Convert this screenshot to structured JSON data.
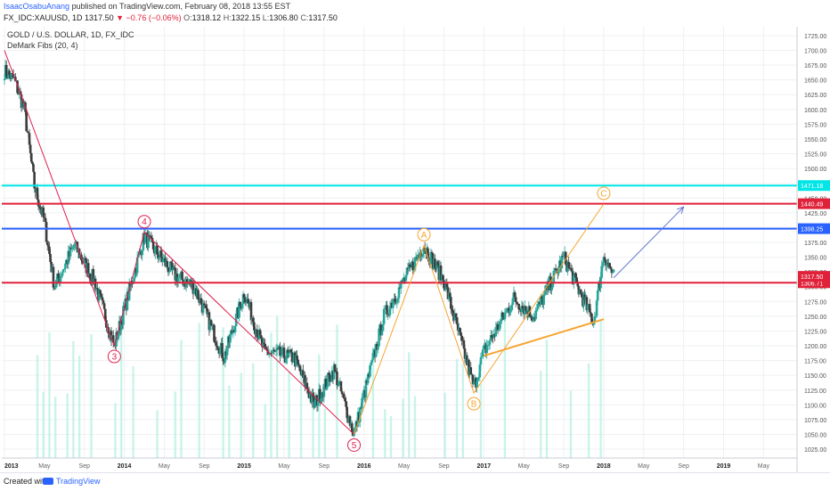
{
  "header": {
    "author": "IsaacOsabuAnang",
    "published_text": "published on TradingView.com, February 08, 2018 13:55 EST",
    "symbol": "FX_IDC:XAUUSD, 1D",
    "last": "1317.50",
    "change": "−0.76 (−0.06%)",
    "open_label": "O:",
    "open": "1318.12",
    "high_label": "H:",
    "high": "1322.15",
    "low_label": "L:",
    "low": "1306.80",
    "close_label": "C:",
    "close": "1317.50"
  },
  "legend": {
    "title": "GOLD / U.S. DOLLAR, 1D, FX_IDC",
    "indicator": "DeMark Fibs (20, 4)"
  },
  "footer": {
    "created_with": "Created with",
    "brand": "TradingView"
  },
  "colors": {
    "up": "#26a69a",
    "down": "#3d3d3d",
    "band": "#b2f0e0",
    "cyan": "#00e5e5",
    "red": "#e0213a",
    "blue": "#2962ff",
    "orange": "#f7a531",
    "wave_red": "#e0214f",
    "arrow": "#6675d3"
  },
  "chart_data": {
    "type": "candlestick",
    "x_ticks": [
      "2013",
      "May",
      "Sep",
      "2014",
      "May",
      "Sep",
      "2015",
      "May",
      "Sep",
      "2016",
      "May",
      "Sep",
      "2017",
      "May",
      "Sep",
      "2018",
      "May",
      "Sep",
      "2019",
      "May"
    ],
    "y_ticks": [
      1025,
      1050,
      1075,
      1100,
      1125,
      1150,
      1175,
      1200,
      1225,
      1250,
      1275,
      1300,
      1325,
      1350,
      1375,
      1400,
      1425,
      1450,
      1475,
      1500,
      1525,
      1550,
      1575,
      1600,
      1625,
      1650,
      1675,
      1700,
      1725
    ],
    "ylim": [
      1010,
      1740
    ],
    "grid": true,
    "price_path": [
      [
        "2013-01",
        1665
      ],
      [
        "2013-02",
        1650
      ],
      [
        "2013-03",
        1600
      ],
      [
        "2013-04",
        1470
      ],
      [
        "2013-05",
        1410
      ],
      [
        "2013-06",
        1300
      ],
      [
        "2013-08",
        1370
      ],
      [
        "2013-10",
        1310
      ],
      [
        "2013-12",
        1200
      ],
      [
        "2014-03",
        1385
      ],
      [
        "2014-06",
        1320
      ],
      [
        "2014-08",
        1300
      ],
      [
        "2014-11",
        1180
      ],
      [
        "2015-01",
        1290
      ],
      [
        "2015-03",
        1190
      ],
      [
        "2015-06",
        1180
      ],
      [
        "2015-08",
        1100
      ],
      [
        "2015-10",
        1160
      ],
      [
        "2015-12",
        1050
      ],
      [
        "2016-03",
        1250
      ],
      [
        "2016-07",
        1370
      ],
      [
        "2016-09",
        1310
      ],
      [
        "2016-12",
        1130
      ],
      [
        "2017-01",
        1190
      ],
      [
        "2017-04",
        1280
      ],
      [
        "2017-06",
        1250
      ],
      [
        "2017-09",
        1350
      ],
      [
        "2017-12",
        1240
      ],
      [
        "2018-01",
        1355
      ],
      [
        "2018-02",
        1317.5
      ]
    ],
    "horizontal_levels": [
      {
        "value": 1471.18,
        "label": "1471.18",
        "color": "#00e5e5"
      },
      {
        "value": 1440.49,
        "label": "1440.49",
        "color": "#e0213a"
      },
      {
        "value": 1398.25,
        "label": "1398.25",
        "color": "#2962ff"
      },
      {
        "value": 1306.71,
        "label": "1306.71",
        "color": "#e0213a"
      }
    ],
    "last_price": {
      "value": 1317.5,
      "label": "1317.50"
    },
    "wave_labels": [
      {
        "label": "3",
        "date": "2013-12",
        "price": 1200
      },
      {
        "label": "4",
        "date": "2014-03",
        "price": 1392
      },
      {
        "label": "5",
        "date": "2015-12",
        "price": 1050
      },
      {
        "label": "A",
        "date": "2016-07",
        "price": 1370
      },
      {
        "label": "B",
        "date": "2016-12",
        "price": 1120
      },
      {
        "label": "C",
        "date": "2018-01",
        "price": 1440
      }
    ],
    "red_wave_path": [
      [
        "2013-01",
        1700
      ],
      [
        "2013-12",
        1200
      ],
      [
        "2014-03",
        1392
      ],
      [
        "2015-12",
        1050
      ]
    ],
    "orange_path": [
      [
        "2015-12",
        1050
      ],
      [
        "2016-07",
        1370
      ],
      [
        "2016-12",
        1120
      ],
      [
        "2018-01",
        1440
      ]
    ],
    "orange_trendline": [
      [
        "2017-01",
        1183
      ],
      [
        "2018-01",
        1245
      ]
    ],
    "projection_arrow": [
      [
        "2018-02",
        1315
      ],
      [
        "2018-09",
        1435
      ]
    ]
  }
}
